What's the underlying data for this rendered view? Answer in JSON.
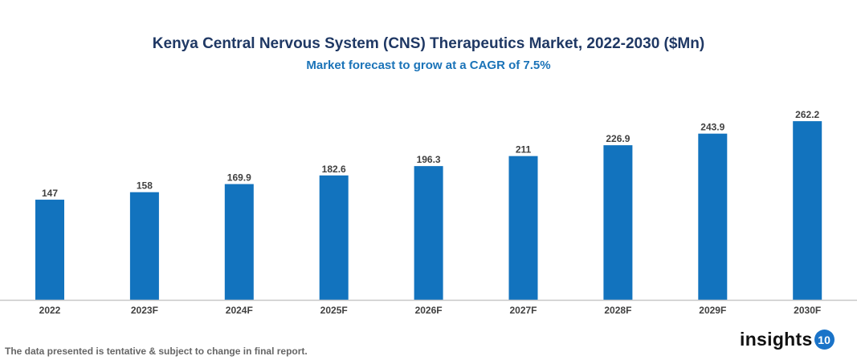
{
  "chart_data": {
    "type": "bar",
    "title": "Kenya Central Nervous System (CNS) Therapeutics Market, 2022-2030 ($Mn)",
    "subtitle": "Market forecast to grow at a CAGR of 7.5%",
    "categories": [
      "2022",
      "2023F",
      "2024F",
      "2025F",
      "2026F",
      "2027F",
      "2028F",
      "2029F",
      "2030F"
    ],
    "values": [
      147,
      158,
      169.9,
      182.6,
      196.3,
      211,
      226.9,
      243.9,
      262.2
    ],
    "value_labels": [
      "147",
      "158",
      "169.9",
      "182.6",
      "196.3",
      "211",
      "226.9",
      "243.9",
      "262.2"
    ],
    "xlabel": "",
    "ylabel": "",
    "ylim": [
      0,
      275
    ],
    "grid": false,
    "legend": "none",
    "bar_color": "#1273be"
  },
  "footer": {
    "disclaimer": "The data presented is tentative & subject to change in final report.",
    "logo_text": "insights",
    "logo_badge": "10"
  }
}
